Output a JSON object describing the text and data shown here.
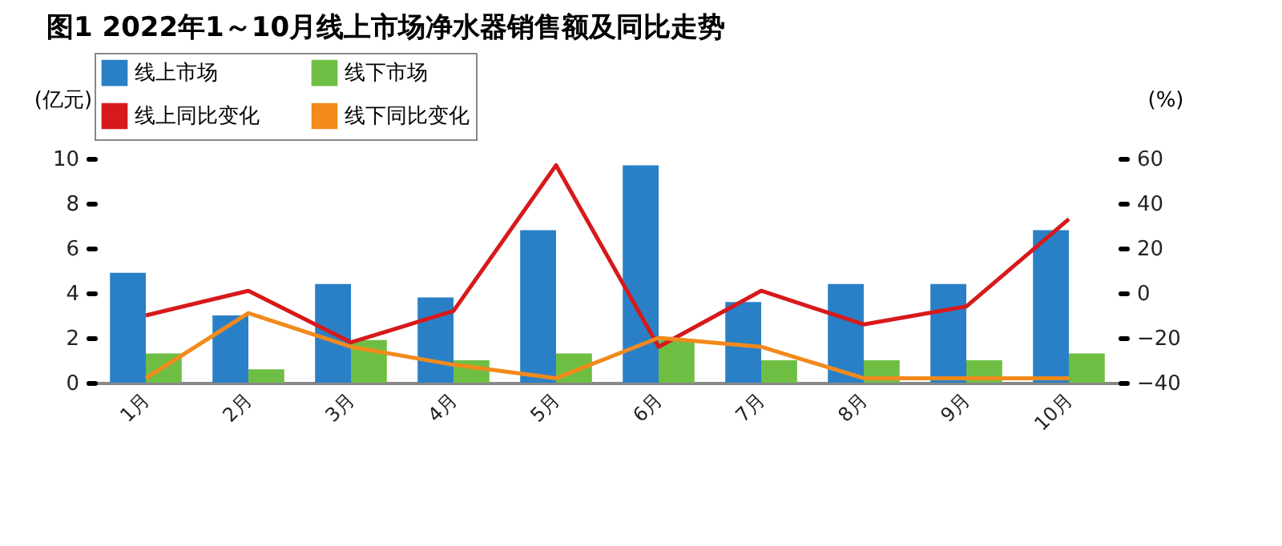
{
  "chart_data": {
    "type": "bar",
    "title": "图1  2022年1～10月线上市场净水器销售额及同比走势",
    "categories": [
      "1月",
      "2月",
      "3月",
      "4月",
      "5月",
      "6月",
      "7月",
      "8月",
      "9月",
      "10月"
    ],
    "series": [
      {
        "name": "线上市场",
        "color": "#2a80c6",
        "values": [
          4.9,
          3.0,
          4.4,
          3.8,
          6.8,
          9.7,
          3.6,
          4.4,
          4.4,
          6.8
        ]
      },
      {
        "name": "线下市场",
        "color": "#6fbe44",
        "values": [
          1.3,
          0.6,
          1.9,
          1.0,
          1.3,
          1.9,
          1.0,
          1.0,
          1.0,
          1.3
        ]
      },
      {
        "name": "线上同比变化",
        "type": "line",
        "axis": "y2",
        "color": "#d7191c",
        "values": [
          -10,
          1,
          -22,
          -8,
          57,
          -24,
          1,
          -14,
          -6,
          33
        ]
      },
      {
        "name": "线下同比变化",
        "type": "line",
        "axis": "y2",
        "color": "#f28a1c",
        "values": [
          -38,
          -9,
          -24,
          -32,
          -38,
          -20,
          -24,
          -38,
          -38,
          -38
        ]
      }
    ],
    "ylabel": "(亿元)",
    "y2label": "(%)",
    "ylim": [
      0,
      10
    ],
    "yticks": [
      0,
      2,
      4,
      6,
      8,
      10
    ],
    "y2lim": [
      -40,
      60
    ],
    "y2ticks": [
      {
        "value": -40,
        "label": "−40"
      },
      {
        "value": -20,
        "label": "−20"
      },
      0,
      20,
      40,
      60
    ],
    "grid": false,
    "legend": "top left"
  }
}
